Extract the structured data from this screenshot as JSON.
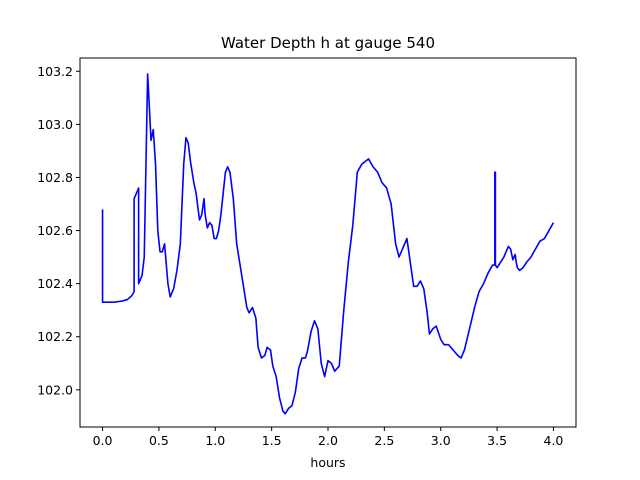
{
  "chart_data": {
    "type": "line",
    "title": "Water Depth h at gauge 540",
    "xlabel": "hours",
    "ylabel": "",
    "xlim": [
      -0.2,
      4.2
    ],
    "ylim": [
      101.86,
      103.25
    ],
    "xticks": [
      0.0,
      0.5,
      1.0,
      1.5,
      2.0,
      2.5,
      3.0,
      3.5,
      4.0
    ],
    "xtick_labels": [
      "0.0",
      "0.5",
      "1.0",
      "1.5",
      "2.0",
      "2.5",
      "3.0",
      "3.5",
      "4.0"
    ],
    "yticks": [
      102.0,
      102.2,
      102.4,
      102.6,
      102.8,
      103.0,
      103.2
    ],
    "ytick_labels": [
      "102.0",
      "102.2",
      "102.4",
      "102.6",
      "102.8",
      "103.0",
      "103.2"
    ],
    "grid": false,
    "series": [
      {
        "color": "#0000ff",
        "x": [
          0.0,
          0.0,
          0.005,
          0.1,
          0.18,
          0.22,
          0.26,
          0.28,
          0.28,
          0.32,
          0.32,
          0.33,
          0.35,
          0.37,
          0.4,
          0.41,
          0.43,
          0.45,
          0.47,
          0.49,
          0.51,
          0.53,
          0.55,
          0.58,
          0.6,
          0.63,
          0.66,
          0.69,
          0.72,
          0.74,
          0.76,
          0.78,
          0.81,
          0.83,
          0.86,
          0.88,
          0.9,
          0.91,
          0.93,
          0.95,
          0.97,
          0.99,
          1.01,
          1.03,
          1.05,
          1.07,
          1.09,
          1.11,
          1.13,
          1.16,
          1.19,
          1.22,
          1.25,
          1.28,
          1.3,
          1.33,
          1.36,
          1.38,
          1.41,
          1.44,
          1.46,
          1.49,
          1.51,
          1.54,
          1.57,
          1.6,
          1.62,
          1.65,
          1.68,
          1.71,
          1.74,
          1.77,
          1.8,
          1.82,
          1.85,
          1.88,
          1.91,
          1.94,
          1.97,
          2.0,
          2.03,
          2.06,
          2.1,
          2.14,
          2.18,
          2.22,
          2.26,
          2.3,
          2.33,
          2.36,
          2.4,
          2.44,
          2.48,
          2.52,
          2.56,
          2.6,
          2.63,
          2.66,
          2.7,
          2.73,
          2.76,
          2.79,
          2.82,
          2.85,
          2.88,
          2.9,
          2.93,
          2.96,
          3.0,
          3.03,
          3.07,
          3.11,
          3.15,
          3.18,
          3.21,
          3.25,
          3.3,
          3.34,
          3.38,
          3.42,
          3.46,
          3.48,
          3.48,
          3.485,
          3.485,
          3.5,
          3.53,
          3.56,
          3.6,
          3.62,
          3.64,
          3.66,
          3.67,
          3.68,
          3.7,
          3.73,
          3.76,
          3.8,
          3.84,
          3.88,
          3.92,
          3.96,
          4.0
        ],
        "y": [
          102.68,
          102.33,
          102.33,
          102.33,
          102.335,
          102.34,
          102.355,
          102.37,
          102.72,
          102.76,
          102.4,
          102.41,
          102.43,
          102.5,
          103.19,
          103.11,
          102.94,
          102.98,
          102.85,
          102.6,
          102.52,
          102.52,
          102.55,
          102.4,
          102.35,
          102.38,
          102.45,
          102.55,
          102.85,
          102.95,
          102.93,
          102.86,
          102.78,
          102.74,
          102.64,
          102.66,
          102.72,
          102.66,
          102.61,
          102.63,
          102.62,
          102.57,
          102.57,
          102.6,
          102.66,
          102.74,
          102.82,
          102.84,
          102.82,
          102.72,
          102.55,
          102.47,
          102.39,
          102.31,
          102.29,
          102.31,
          102.27,
          102.16,
          102.12,
          102.13,
          102.16,
          102.15,
          102.09,
          102.05,
          101.97,
          101.92,
          101.91,
          101.93,
          101.94,
          101.99,
          102.08,
          102.12,
          102.12,
          102.15,
          102.22,
          102.26,
          102.23,
          102.1,
          102.05,
          102.11,
          102.1,
          102.07,
          102.09,
          102.3,
          102.48,
          102.62,
          102.82,
          102.85,
          102.86,
          102.87,
          102.84,
          102.82,
          102.78,
          102.76,
          102.7,
          102.55,
          102.5,
          102.53,
          102.57,
          102.48,
          102.39,
          102.39,
          102.41,
          102.38,
          102.29,
          102.21,
          102.23,
          102.24,
          102.19,
          102.17,
          102.17,
          102.15,
          102.13,
          102.12,
          102.15,
          102.22,
          102.31,
          102.37,
          102.4,
          102.44,
          102.47,
          102.47,
          102.82,
          102.82,
          102.47,
          102.46,
          102.48,
          102.5,
          102.54,
          102.53,
          102.49,
          102.51,
          102.48,
          102.46,
          102.45,
          102.46,
          102.48,
          102.5,
          102.53,
          102.56,
          102.57,
          102.6,
          102.63
        ]
      }
    ]
  }
}
